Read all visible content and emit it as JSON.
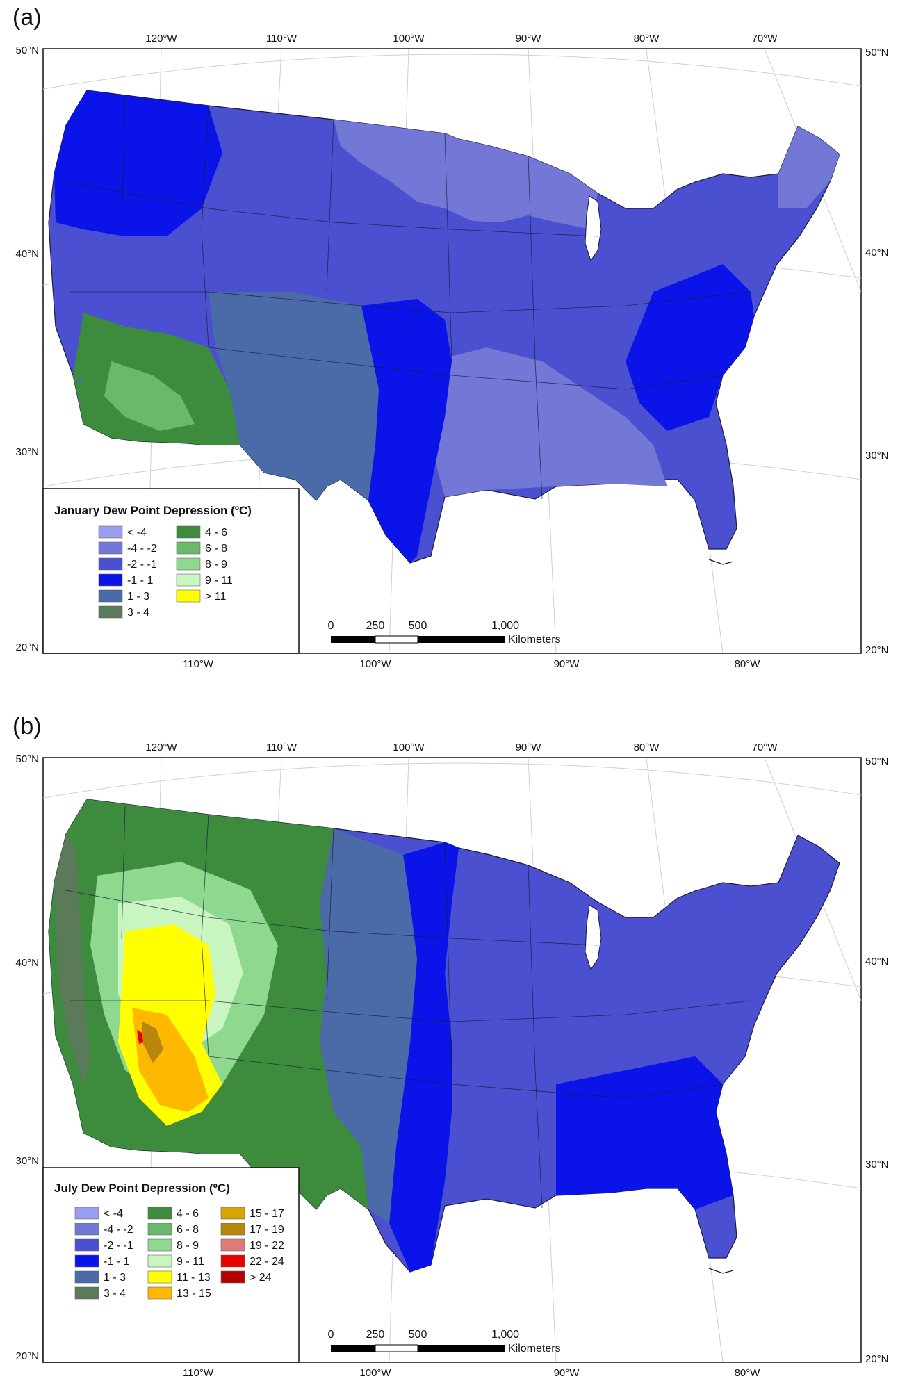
{
  "panels": [
    {
      "label": "(a)",
      "top_lon_labels": [
        "120°W",
        "110°W",
        "100°W",
        "90°W",
        "80°W",
        "70°W"
      ],
      "bottom_lon_labels": [
        "110°W",
        "100°W",
        "90°W",
        "80°W"
      ],
      "left_lat_labels": [
        "50°N",
        "40°N",
        "30°N",
        "20°N"
      ],
      "right_lat_labels": [
        "50°N",
        "40°N",
        "30°N",
        "20°N"
      ],
      "legend": {
        "title": "January Dew Point Depression (ºC)",
        "items": [
          {
            "label": "< -4",
            "color": "#9b9ef0"
          },
          {
            "label": "-4 - -2",
            "color": "#7377d6"
          },
          {
            "label": "-2 - -1",
            "color": "#4a50cf"
          },
          {
            "label": "-1 - 1",
            "color": "#0a14e8"
          },
          {
            "label": "1 - 3",
            "color": "#4a6aa8"
          },
          {
            "label": "3 - 4",
            "color": "#5a7a5a"
          },
          {
            "label": "4 - 6",
            "color": "#3d8c3d"
          },
          {
            "label": "6 - 8",
            "color": "#6ab86a"
          },
          {
            "label": "8 - 9",
            "color": "#8fd88f"
          },
          {
            "label": "9 - 11",
            "color": "#c8f5c0"
          },
          {
            "label": "> 11",
            "color": "#ffff00"
          }
        ]
      },
      "scale": {
        "ticks": [
          "0",
          "250",
          "500",
          "1,000"
        ],
        "unit": "Kilometers"
      }
    },
    {
      "label": "(b)",
      "top_lon_labels": [
        "120°W",
        "110°W",
        "100°W",
        "90°W",
        "80°W",
        "70°W"
      ],
      "bottom_lon_labels": [
        "110°W",
        "100°W",
        "90°W",
        "80°W"
      ],
      "left_lat_labels": [
        "50°N",
        "40°N",
        "30°N",
        "20°N"
      ],
      "right_lat_labels": [
        "50°N",
        "40°N",
        "30°N",
        "20°N"
      ],
      "legend": {
        "title": "July Dew Point Depression (ºC)",
        "items": [
          {
            "label": "< -4",
            "color": "#9b9ef0"
          },
          {
            "label": "-4 - -2",
            "color": "#7377d6"
          },
          {
            "label": "-2 - -1",
            "color": "#4a50cf"
          },
          {
            "label": "-1 - 1",
            "color": "#0a14e8"
          },
          {
            "label": "1 - 3",
            "color": "#4a6aa8"
          },
          {
            "label": "3 - 4",
            "color": "#5a7a5a"
          },
          {
            "label": "4 - 6",
            "color": "#3d8c3d"
          },
          {
            "label": "6 - 8",
            "color": "#6ab86a"
          },
          {
            "label": "8 - 9",
            "color": "#8fd88f"
          },
          {
            "label": "9 - 11",
            "color": "#c8f5c0"
          },
          {
            "label": "11 - 13",
            "color": "#ffff00"
          },
          {
            "label": "13 - 15",
            "color": "#ffb800"
          },
          {
            "label": "15 - 17",
            "color": "#d9a300"
          },
          {
            "label": "17 - 19",
            "color": "#b8860b"
          },
          {
            "label": "19 - 22",
            "color": "#e07a7a"
          },
          {
            "label": "22 - 24",
            "color": "#e60000"
          },
          {
            "label": "> 24",
            "color": "#b30000"
          }
        ]
      },
      "scale": {
        "ticks": [
          "0",
          "250",
          "500",
          "1,000"
        ],
        "unit": "Kilometers"
      }
    }
  ]
}
